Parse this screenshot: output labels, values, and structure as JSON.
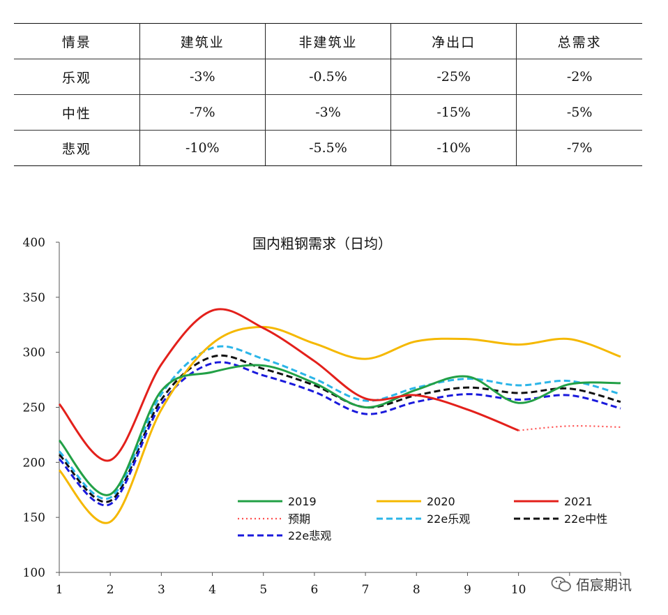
{
  "table": {
    "headers": [
      "情景",
      "建筑业",
      "非建筑业",
      "净出口",
      "总需求"
    ],
    "rows": [
      [
        "乐观",
        "-3%",
        "-0.5%",
        "-25%",
        "-2%"
      ],
      [
        "中性",
        "-7%",
        "-3%",
        "-15%",
        "-5%"
      ],
      [
        "悲观",
        "-10%",
        "-5.5%",
        "-10%",
        "-7%"
      ]
    ]
  },
  "watermark": {
    "text": "佰宸期讯"
  },
  "chart_data": {
    "type": "line",
    "title": "国内粗钢需求（日均）",
    "xlabel": "",
    "ylabel": "",
    "x": [
      1,
      2,
      3,
      4,
      5,
      6,
      7,
      8,
      9,
      10,
      11,
      12
    ],
    "x_tick_labels": [
      "1",
      "2",
      "3",
      "4",
      "5",
      "6",
      "7",
      "8",
      "9",
      "10",
      "",
      ""
    ],
    "xlim": [
      1,
      12
    ],
    "ylim": [
      100,
      400
    ],
    "y_ticks": [
      100,
      150,
      200,
      250,
      300,
      350,
      400
    ],
    "grid": false,
    "legend_position": "bottom-inside",
    "series": [
      {
        "name": "2019",
        "color": "#22a046",
        "dash": "solid",
        "values": [
          220,
          171,
          265,
          282,
          288,
          272,
          250,
          266,
          278,
          254,
          271,
          272
        ]
      },
      {
        "name": "2020",
        "color": "#f5b800",
        "dash": "solid",
        "values": [
          193,
          146,
          248,
          308,
          323,
          308,
          294,
          310,
          312,
          307,
          312,
          296
        ]
      },
      {
        "name": "2021",
        "color": "#e3201b",
        "dash": "solid",
        "values": [
          253,
          202,
          289,
          338,
          322,
          292,
          258,
          261,
          248,
          229,
          null,
          null
        ]
      },
      {
        "name": "预期",
        "color": "#ff5050",
        "dash": "dotted",
        "values": [
          null,
          null,
          null,
          null,
          null,
          null,
          null,
          null,
          null,
          229,
          233,
          232
        ]
      },
      {
        "name": "22e乐观",
        "color": "#2bb5e8",
        "dash": "dashed",
        "values": [
          210,
          168,
          262,
          304,
          294,
          276,
          256,
          268,
          276,
          270,
          274,
          262
        ]
      },
      {
        "name": "22e中性",
        "color": "#111111",
        "dash": "dashed",
        "values": [
          207,
          165,
          257,
          296,
          285,
          270,
          250,
          261,
          268,
          263,
          267,
          255
        ]
      },
      {
        "name": "22e悲观",
        "color": "#1a1adc",
        "dash": "dashed",
        "values": [
          203,
          162,
          253,
          290,
          279,
          264,
          244,
          255,
          262,
          257,
          261,
          249
        ]
      }
    ]
  }
}
